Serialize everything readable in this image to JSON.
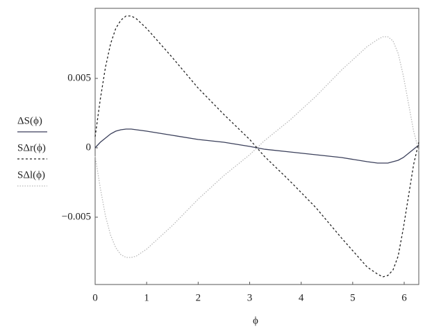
{
  "chart_data": {
    "type": "line",
    "x_label": "ϕ",
    "x": [
      0,
      0.1,
      0.2,
      0.3,
      0.4,
      0.5,
      0.6,
      0.7,
      0.8,
      1.0,
      1.5,
      2.0,
      2.5,
      3.0,
      3.1416,
      3.283,
      3.783,
      4.283,
      4.783,
      5.283,
      5.483,
      5.583,
      5.683,
      5.783,
      5.883,
      5.983,
      6.083,
      6.183,
      6.283
    ],
    "series": [
      {
        "name": "ΔS(ϕ)",
        "color": "#3a3f5a",
        "style": "solid",
        "values": [
          0,
          0.0004,
          0.0007,
          0.001,
          0.0012,
          0.0013,
          0.00135,
          0.00135,
          0.0013,
          0.0012,
          0.0009,
          0.0006,
          0.0004,
          0.0001,
          0,
          -0.0001,
          -0.0003,
          -0.0005,
          -0.0007,
          -0.001,
          -0.0011,
          -0.0011,
          -0.0011,
          -0.001,
          -0.0009,
          -0.0007,
          -0.0004,
          -0.0001,
          0.0002
        ]
      },
      {
        "name": "SΔr(ϕ)",
        "color": "#222222",
        "style": "dashed",
        "values": [
          0.0008,
          0.0035,
          0.0058,
          0.0075,
          0.0086,
          0.0092,
          0.0095,
          0.0095,
          0.0093,
          0.0086,
          0.0065,
          0.0043,
          0.0024,
          0.0006,
          0,
          -0.0006,
          -0.0024,
          -0.0043,
          -0.0065,
          -0.0086,
          -0.0091,
          -0.0093,
          -0.0092,
          -0.0088,
          -0.0078,
          -0.0058,
          -0.0035,
          -0.0012,
          0.0004
        ]
      },
      {
        "name": "SΔl(ϕ)",
        "color": "#b8b8b8",
        "style": "dotted",
        "values": [
          -0.0006,
          -0.0029,
          -0.0049,
          -0.0063,
          -0.0072,
          -0.0077,
          -0.0079,
          -0.0079,
          -0.0078,
          -0.0073,
          -0.0056,
          -0.0037,
          -0.002,
          -0.0005,
          0,
          0.0005,
          0.002,
          0.0037,
          0.0056,
          0.0073,
          0.0078,
          0.008,
          0.008,
          0.0077,
          0.0068,
          0.0052,
          0.0032,
          0.0012,
          -0.0002
        ]
      }
    ],
    "xlim": [
      0,
      6.283
    ],
    "xticks": [
      0,
      1,
      2,
      3,
      4,
      5,
      6
    ],
    "ylim": [
      -0.00985,
      0.01005
    ],
    "yticks": [
      0.005,
      0,
      {
        "value": -0.005,
        "label": "−0.005"
      }
    ]
  }
}
